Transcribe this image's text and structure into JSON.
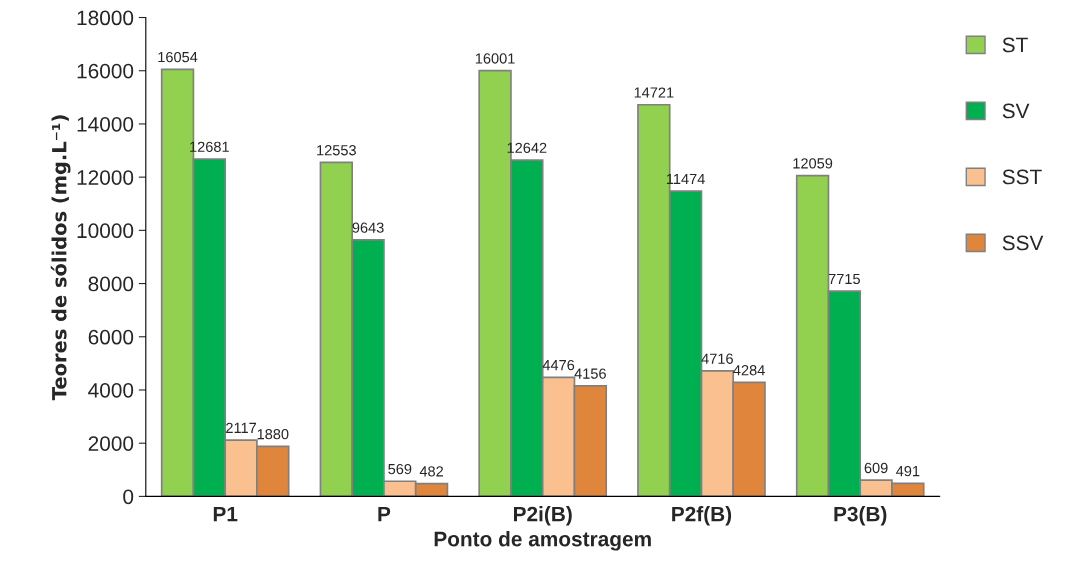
{
  "chart_data": {
    "type": "bar",
    "xlabel": "Ponto de amostragem",
    "ylabel": "Teores de sólidos (mg.L⁻¹)",
    "categories": [
      "P1",
      "P",
      "P2i(B)",
      "P2f(B)",
      "P3(B)"
    ],
    "series": [
      {
        "name": "ST",
        "color": "#92d050",
        "values": [
          16054,
          12553,
          16001,
          14721,
          12059
        ]
      },
      {
        "name": "SV",
        "color": "#00b050",
        "values": [
          12681,
          9643,
          12642,
          11474,
          7715
        ]
      },
      {
        "name": "SST",
        "color": "#fac090",
        "values": [
          2117,
          569,
          4476,
          4716,
          609
        ]
      },
      {
        "name": "SSV",
        "color": "#e0863c",
        "values": [
          1880,
          482,
          4156,
          4284,
          491
        ]
      }
    ],
    "ylim": [
      0,
      18000
    ],
    "yticks": [
      0,
      2000,
      4000,
      6000,
      8000,
      10000,
      12000,
      14000,
      16000,
      18000
    ],
    "data_labels": true,
    "grid": false,
    "legend": "right"
  }
}
